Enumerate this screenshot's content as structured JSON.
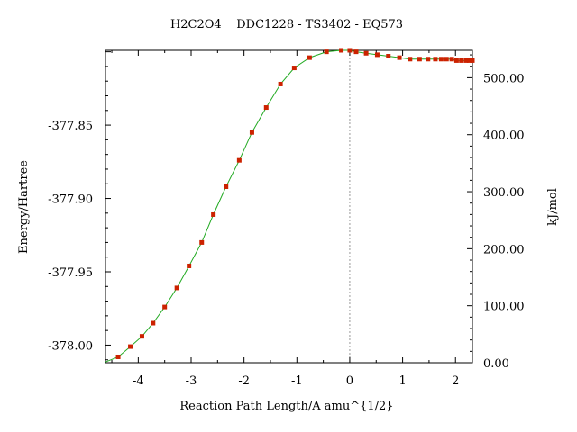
{
  "chart_data": {
    "type": "line",
    "title": "H2C2O4    DDC1228 - TS3402 - EQ573",
    "xlabel": "Reaction Path Length/A amu^{1/2}",
    "ylabel": "Energy/Hartree",
    "y2label": "kJ/mol",
    "xlim": [
      -4.62,
      2.32
    ],
    "ylim": [
      -378.012,
      -377.799
    ],
    "y2lim": [
      0,
      548
    ],
    "xticks": [
      -4,
      -3,
      -2,
      -1,
      0,
      1,
      2
    ],
    "xtick_labels": [
      "-4",
      "-3",
      "-2",
      "-1",
      "0",
      "1",
      "2"
    ],
    "yticks": [
      -378.0,
      -377.95,
      -377.9,
      -377.85
    ],
    "ytick_labels": [
      "-378.00",
      "-377.95",
      "-377.90",
      "-377.85"
    ],
    "y2ticks": [
      0,
      100,
      200,
      300,
      400,
      500
    ],
    "y2tick_labels": [
      "0.00",
      "100.00",
      "200.00",
      "300.00",
      "400.00",
      "500.00"
    ],
    "vline_x": 0,
    "colors": {
      "curve": "#22aa22",
      "marker": "#cc2200",
      "vline": "#999999",
      "axis": "#000000"
    },
    "series": [
      {
        "x": [
          -4.38,
          -4.15,
          -3.93,
          -3.72,
          -3.5,
          -3.27,
          -3.04,
          -2.8,
          -2.58,
          -2.34,
          -2.09,
          -1.85,
          -1.58,
          -1.31,
          -1.05,
          -0.76,
          -0.44,
          -0.16,
          0.0,
          0.12,
          0.31,
          0.52,
          0.73,
          0.94,
          1.14,
          1.32,
          1.48,
          1.62,
          1.73,
          1.83,
          1.93,
          2.02,
          2.11,
          2.2,
          2.26,
          2.32
        ],
        "y": [
          -378.008,
          -378.001,
          -377.994,
          -377.985,
          -377.974,
          -377.961,
          -377.946,
          -377.93,
          -377.911,
          -377.892,
          -377.874,
          -377.855,
          -377.838,
          -377.822,
          -377.811,
          -377.804,
          -377.8,
          -377.799,
          -377.799,
          -377.8,
          -377.801,
          -377.802,
          -377.803,
          -377.804,
          -377.805,
          -377.805,
          -377.805,
          -377.805,
          -377.805,
          -377.805,
          -377.805,
          -377.806,
          -377.806,
          -377.806,
          -377.806,
          -377.806
        ]
      }
    ]
  }
}
